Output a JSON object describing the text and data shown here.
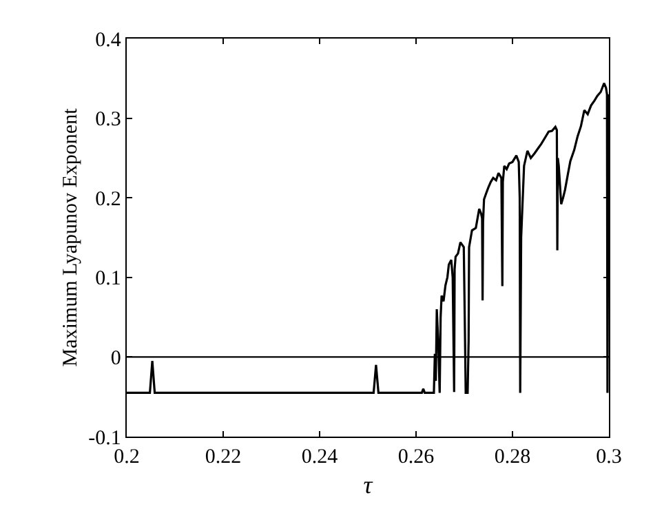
{
  "chart_data": {
    "type": "line",
    "xlabel": "τ",
    "ylabel": "Maximum Lyapunov Exponent",
    "xlim": [
      0.2,
      0.3
    ],
    "ylim": [
      -0.1,
      0.4
    ],
    "xticks": [
      0.2,
      0.22,
      0.24,
      0.26,
      0.28,
      0.3
    ],
    "yticks": [
      -0.1,
      0,
      0.1,
      0.2,
      0.3,
      0.4
    ],
    "marker": "none",
    "line_style": "solid",
    "ref_lines": [
      {
        "axis": "y",
        "value": 0,
        "color": "#000000"
      }
    ],
    "series": [
      {
        "color": "#000000",
        "x": [
          0.2,
          0.2048,
          0.2053,
          0.2058,
          0.2512,
          0.2517,
          0.2522,
          0.2612,
          0.2615,
          0.2618,
          0.2637,
          0.2639,
          0.2641,
          0.2643,
          0.2646,
          0.2649,
          0.2651,
          0.2653,
          0.2657,
          0.2661,
          0.2665,
          0.2668,
          0.2673,
          0.2676,
          0.2679,
          0.268,
          0.2682,
          0.2687,
          0.2692,
          0.2699,
          0.2701,
          0.2703,
          0.2707,
          0.2709,
          0.271,
          0.2716,
          0.2724,
          0.2731,
          0.2735,
          0.2737,
          0.2738,
          0.2739,
          0.2741,
          0.2745,
          0.275,
          0.2755,
          0.276,
          0.2766,
          0.2771,
          0.2777,
          0.2779,
          0.278,
          0.2783,
          0.2788,
          0.2793,
          0.28,
          0.2808,
          0.2813,
          0.2815,
          0.2816,
          0.2818,
          0.2824,
          0.2831,
          0.2838,
          0.2846,
          0.2853,
          0.286,
          0.2867,
          0.2875,
          0.2882,
          0.2889,
          0.2892,
          0.2893,
          0.2894,
          0.2896,
          0.2901,
          0.2905,
          0.2909,
          0.2915,
          0.292,
          0.2928,
          0.2935,
          0.2942,
          0.2949,
          0.2956,
          0.2963,
          0.297,
          0.2976,
          0.2983,
          0.299,
          0.2994,
          0.2996,
          0.2997,
          0.2999,
          0.3
        ],
        "values": [
          -0.045,
          -0.045,
          -0.005,
          -0.045,
          -0.045,
          -0.01,
          -0.045,
          -0.045,
          -0.04,
          -0.045,
          -0.045,
          0.004,
          -0.03,
          0.06,
          0.02,
          -0.045,
          0.05,
          0.077,
          0.07,
          0.09,
          0.1,
          0.116,
          0.122,
          0.1,
          -0.044,
          0.11,
          0.126,
          0.13,
          0.144,
          0.138,
          0.05,
          -0.045,
          -0.045,
          0.02,
          0.138,
          0.159,
          0.162,
          0.186,
          0.18,
          0.174,
          0.071,
          0.17,
          0.198,
          0.205,
          0.213,
          0.22,
          0.225,
          0.222,
          0.231,
          0.225,
          0.089,
          0.22,
          0.24,
          0.236,
          0.243,
          0.245,
          0.253,
          0.245,
          0.2,
          -0.045,
          0.15,
          0.24,
          0.259,
          0.25,
          0.256,
          0.262,
          0.268,
          0.275,
          0.283,
          0.284,
          0.289,
          0.285,
          0.134,
          0.25,
          0.24,
          0.192,
          0.2,
          0.21,
          0.23,
          0.246,
          0.26,
          0.277,
          0.29,
          0.31,
          0.305,
          0.316,
          0.322,
          0.328,
          0.333,
          0.344,
          0.338,
          0.33,
          -0.045,
          0.32,
          0.33
        ]
      }
    ]
  }
}
